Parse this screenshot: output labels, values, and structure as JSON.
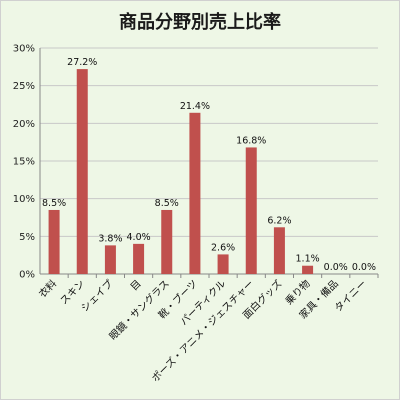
{
  "chart_data": {
    "type": "bar",
    "title": "商品分野別売上比率",
    "categories": [
      "衣料",
      "スキン",
      "シェイプ",
      "目",
      "眼鏡・サングラス",
      "靴・ブーツ",
      "パーティクル",
      "ポーズ・アニメ・ジェスチャー",
      "面白グッズ",
      "乗り物",
      "家具・備品",
      "タイニー"
    ],
    "values": [
      8.5,
      27.2,
      3.8,
      4.0,
      8.5,
      21.4,
      2.6,
      16.8,
      6.2,
      1.1,
      0.0,
      0.0
    ],
    "data_labels": [
      "8.5%",
      "27.2%",
      "3.8%",
      "4.0%",
      "8.5%",
      "21.4%",
      "2.6%",
      "16.8%",
      "6.2%",
      "1.1%",
      "0.0%",
      "0.0%"
    ],
    "y_ticks": [
      "0%",
      "5%",
      "10%",
      "15%",
      "20%",
      "25%",
      "30%"
    ],
    "ylim": [
      0,
      30
    ],
    "grid": true,
    "bar_color": "#c0504d",
    "grid_color": "#c8c8c8"
  }
}
